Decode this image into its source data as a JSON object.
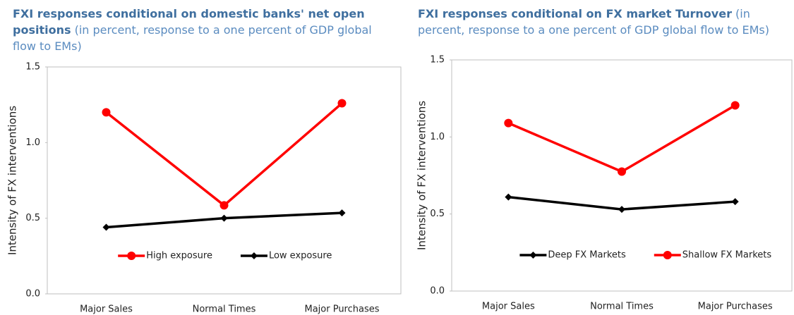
{
  "chart_data": [
    {
      "type": "line",
      "title": "FXI responses conditional on domestic banks' net open positions",
      "subtitle": "(in percent, response to a one percent of GDP global flow to EMs)",
      "ylabel": "Intensity of FX interventions",
      "categories": [
        "Major Sales",
        "Normal Times",
        "Major Purchases"
      ],
      "series": [
        {
          "name": "High exposure",
          "color": "#ff0000",
          "marker": "circle",
          "values": [
            1.2,
            0.585,
            1.26
          ]
        },
        {
          "name": "Low exposure",
          "color": "#000000",
          "marker": "diamond",
          "values": [
            0.44,
            0.5,
            0.535
          ]
        }
      ],
      "ylim": [
        0,
        1.5
      ],
      "yticks": [
        {
          "value": 0,
          "label": "0.0"
        },
        0.5,
        {
          "value": 1,
          "label": "1.0"
        },
        1.5
      ]
    },
    {
      "type": "line",
      "title": "FXI responses conditional on FX market Turnover",
      "subtitle": "(in percent, response to a one percent of GDP global flow to EMs)",
      "ylabel": "Intensity of FX interventions",
      "categories": [
        "Major Sales",
        "Normal Times",
        "Major Purchases"
      ],
      "series": [
        {
          "name": "Deep FX Markets",
          "color": "#000000",
          "marker": "diamond",
          "values": [
            0.61,
            0.53,
            0.58
          ]
        },
        {
          "name": "Shallow FX Markets",
          "color": "#ff0000",
          "marker": "circle",
          "values": [
            1.09,
            0.775,
            1.205
          ]
        }
      ],
      "ylim": [
        0,
        1.5
      ],
      "yticks": [
        {
          "value": 0,
          "label": "0.0"
        },
        0.5,
        {
          "value": 1,
          "label": "1.0"
        },
        1.5
      ]
    }
  ]
}
